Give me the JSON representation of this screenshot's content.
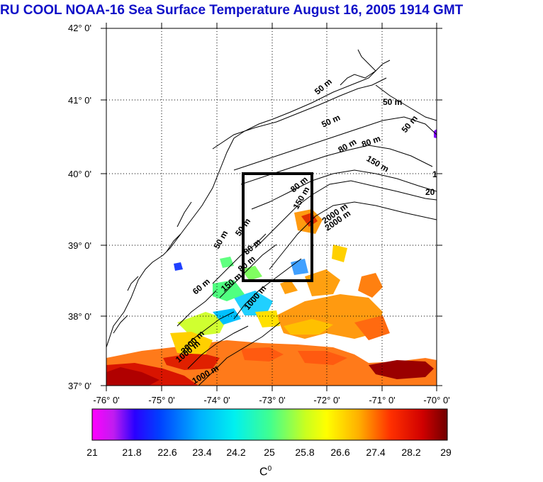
{
  "title": "RU COOL  NOAA-16 Sea Surface Temperature August 16, 2005 1914 GMT",
  "lat_labels": [
    "42° 0'",
    "41° 0'",
    "40° 0'",
    "39° 0'",
    "38° 0'",
    "37° 0'"
  ],
  "lon_labels": [
    "-76° 0'",
    "-75° 0'",
    "-74° 0'",
    "-73° 0'",
    "-72° 0'",
    "-71° 0'",
    "-70° 0'"
  ],
  "contour_labels": [
    "50 m",
    "50 m",
    "50 m",
    "50 m",
    "80 m",
    "80 m",
    "150 m",
    "80 m",
    "150 m",
    "2000 m",
    "50 m",
    "80 m",
    "50 m",
    "80 m",
    "150 m",
    "60 m",
    "1000 m",
    "2000 m",
    "1000 m",
    "1000 m",
    "2000 m",
    "1",
    "20"
  ],
  "colorbar": {
    "min": 21,
    "max": 29,
    "labels": [
      "21",
      "21.8",
      "22.6",
      "23.4",
      "24.2",
      "25",
      "25.8",
      "26.6",
      "27.4",
      "28.2",
      "29"
    ],
    "unit_base": "C",
    "unit_sup": "0"
  },
  "colors": {
    "title": "#1010c8",
    "box": "#000000"
  }
}
